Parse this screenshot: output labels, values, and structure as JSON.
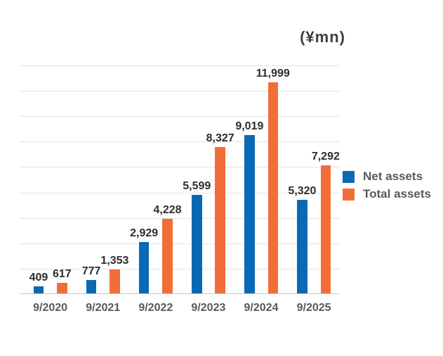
{
  "chart_data": {
    "type": "bar",
    "title": "",
    "unit_label": "(¥mn)",
    "categories": [
      "9/2020",
      "9/2021",
      "9/2022",
      "9/2023",
      "9/2024",
      "9/2025"
    ],
    "series": [
      {
        "name": "Net assets",
        "color": "#0a69b4",
        "values": [
          409,
          777,
          2929,
          5599,
          9019,
          5320
        ],
        "value_labels": [
          "409",
          "777",
          "2,929",
          "5,599",
          "9,019",
          "5,320"
        ]
      },
      {
        "name": "Total assets",
        "color": "#f26e38",
        "values": [
          617,
          1353,
          4228,
          8327,
          11999,
          7292
        ],
        "value_labels": [
          "617",
          "1,353",
          "4,228",
          "8,327",
          "11,999",
          "7,292"
        ]
      }
    ],
    "xlabel": "",
    "ylabel": "",
    "ylim": [
      0,
      13000
    ],
    "gridlines": 10,
    "grid": true,
    "legend_position": "right"
  },
  "colors": {
    "background": "#ffffff",
    "gridline": "#e4e4e4",
    "axis_line": "#c9c9c9",
    "value_label_text": "#2d2d2d",
    "category_label_text": "#595959",
    "legend_text": "#595959",
    "unit_label_text": "#3f3f3f",
    "net_assets": "#0a69b4",
    "total_assets": "#f26e38"
  }
}
